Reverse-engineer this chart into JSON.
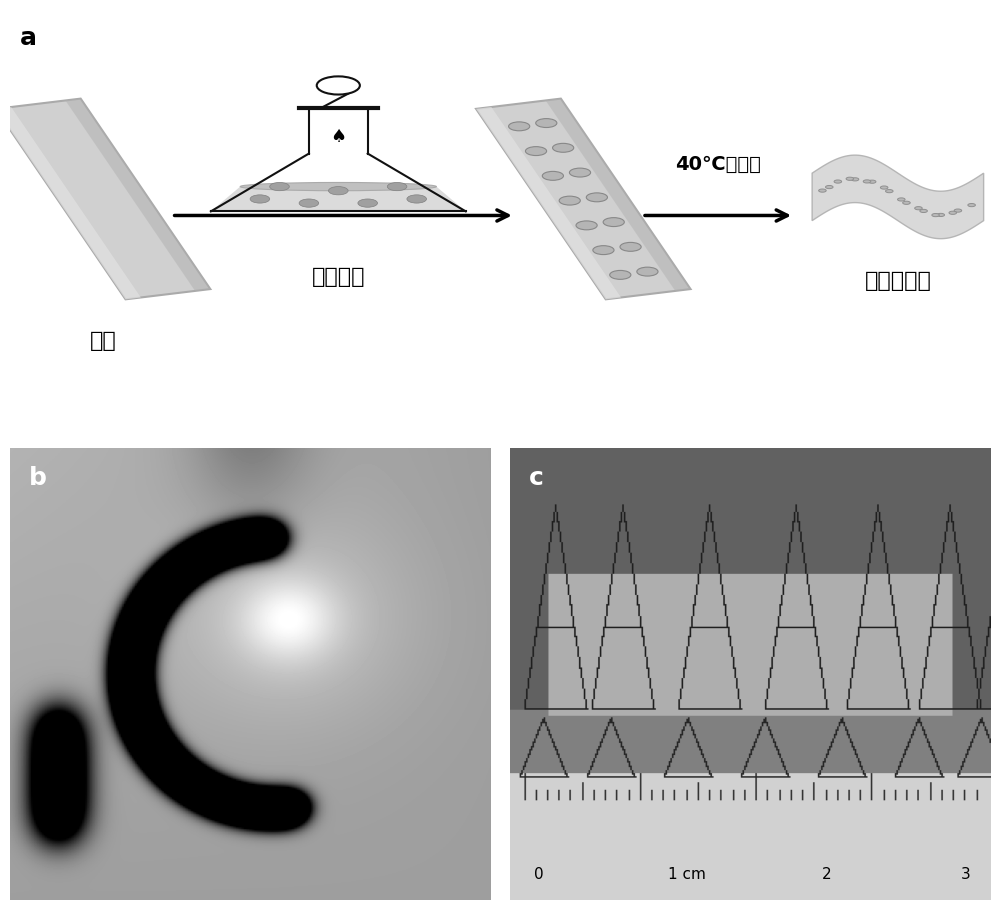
{
  "panel_a_label": "a",
  "panel_b_label": "b",
  "panel_c_label": "c",
  "label1": "玻璃",
  "label2": "薄膜图层",
  "label3": "40℃下干燥",
  "label4": "柔韧性薄膜",
  "bg_color": "#ffffff",
  "glass_color": "#cccccc",
  "glass_edge": "#999999",
  "dot_facecolor": "#b8b8b8",
  "dot_edge": "#888888",
  "arrow_color": "#000000",
  "flask_color": "#111111",
  "wavy_film_color": "#d8d8d8",
  "label_fontsize": 16,
  "panel_label_fontsize": 18
}
